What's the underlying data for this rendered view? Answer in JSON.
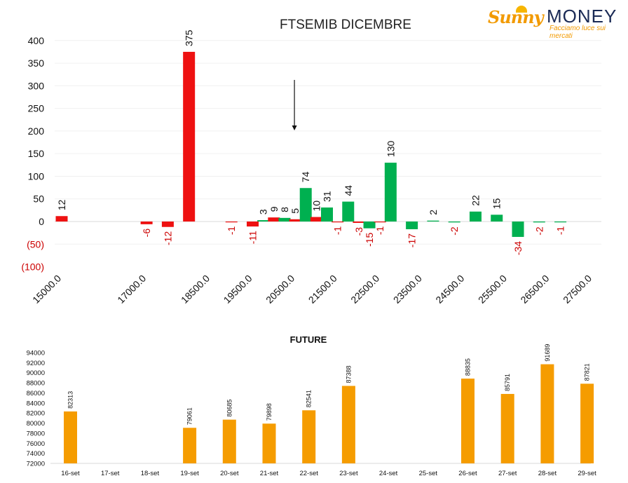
{
  "brand": {
    "name_left": "Sunny",
    "name_right": "MONEY",
    "tagline": "Facciamo luce sui mercati"
  },
  "colors": {
    "positive": "#00b050",
    "negative": "#ee1111",
    "future": "#f59c00",
    "text": "#111111",
    "negative_label": "#cc0000"
  },
  "chart_data": [
    {
      "type": "bar",
      "title": "FTSEMIB DICEMBRE",
      "xlabel": "",
      "ylabel": "",
      "ylim": [
        -100,
        400
      ],
      "yticks": [
        400,
        350,
        300,
        250,
        200,
        150,
        100,
        50,
        0,
        -50,
        -100
      ],
      "ytick_labels": [
        "400",
        "350",
        "300",
        "250",
        "200",
        "150",
        "100",
        "50",
        "0",
        "(50)",
        "(100)"
      ],
      "xlim": [
        15000,
        27500
      ],
      "xticks": [
        15000,
        17000,
        18500,
        19500,
        20500,
        21500,
        22500,
        23500,
        24500,
        25500,
        26500,
        27500
      ],
      "xtick_labels": [
        "15000.0",
        "17000.0",
        "18500.0",
        "19500.0",
        "20500.0",
        "21500.0",
        "22500.0",
        "23500.0",
        "24500.0",
        "25500.0",
        "26500.0",
        "27500.0"
      ],
      "grid": true,
      "annotations": [
        {
          "type": "arrow-down",
          "x": 20500
        }
      ],
      "bars": [
        {
          "x": 15000,
          "value": 12,
          "label": "12",
          "sign": "negative"
        },
        {
          "x": 17000,
          "value": -6,
          "label": "-6",
          "sign": "negative"
        },
        {
          "x": 17500,
          "value": -12,
          "label": "-12",
          "sign": "negative"
        },
        {
          "x": 18000,
          "value": 375,
          "label": "375",
          "sign": "negative"
        },
        {
          "x": 19000,
          "value": -1,
          "label": "-1",
          "sign": "negative"
        },
        {
          "x": 19500,
          "value": -11,
          "label": "-11",
          "sign": "negative"
        },
        {
          "x": 19750,
          "value": 3,
          "label": "3",
          "sign": "positive"
        },
        {
          "x": 20000,
          "value": 9,
          "label": "9",
          "sign": "negative"
        },
        {
          "x": 20250,
          "value": 8,
          "label": "8",
          "sign": "positive"
        },
        {
          "x": 20500,
          "value": 5,
          "label": "5",
          "sign": "negative"
        },
        {
          "x": 20750,
          "value": 74,
          "label": "74",
          "sign": "positive"
        },
        {
          "x": 21000,
          "value": 10,
          "label": "10",
          "sign": "negative"
        },
        {
          "x": 21250,
          "value": 31,
          "label": "31",
          "sign": "positive"
        },
        {
          "x": 21500,
          "value": -1,
          "label": "-1",
          "sign": "negative"
        },
        {
          "x": 21750,
          "value": 44,
          "label": "44",
          "sign": "positive"
        },
        {
          "x": 22000,
          "value": -3,
          "label": "-3",
          "sign": "negative"
        },
        {
          "x": 22250,
          "value": -15,
          "label": "-15",
          "sign": "positive"
        },
        {
          "x": 22500,
          "value": -1,
          "label": "-1",
          "sign": "negative"
        },
        {
          "x": 22750,
          "value": 130,
          "label": "130",
          "sign": "positive"
        },
        {
          "x": 23250,
          "value": -17,
          "label": "-17",
          "sign": "positive"
        },
        {
          "x": 23750,
          "value": 2,
          "label": "2",
          "sign": "positive"
        },
        {
          "x": 24250,
          "value": -2,
          "label": "-2",
          "sign": "positive"
        },
        {
          "x": 24750,
          "value": 22,
          "label": "22",
          "sign": "positive"
        },
        {
          "x": 25250,
          "value": 15,
          "label": "15",
          "sign": "positive"
        },
        {
          "x": 25750,
          "value": -34,
          "label": "-34",
          "sign": "positive"
        },
        {
          "x": 26250,
          "value": -2,
          "label": "-2",
          "sign": "positive"
        },
        {
          "x": 26750,
          "value": -1,
          "label": "-1",
          "sign": "positive"
        }
      ]
    },
    {
      "type": "bar",
      "title": "FUTURE",
      "xlabel": "",
      "ylabel": "",
      "ylim": [
        72000,
        94000
      ],
      "yticks": [
        94000,
        92000,
        90000,
        88000,
        86000,
        84000,
        82000,
        80000,
        78000,
        76000,
        74000,
        72000
      ],
      "grid": false,
      "categories": [
        "16-set",
        "17-set",
        "18-set",
        "19-set",
        "20-set",
        "21-set",
        "22-set",
        "23-set",
        "24-set",
        "25-set",
        "26-set",
        "27-set",
        "28-set",
        "29-set"
      ],
      "values": [
        82313,
        null,
        null,
        79061,
        80685,
        79898,
        82541,
        87388,
        null,
        null,
        88835,
        85791,
        91689,
        87821
      ]
    }
  ]
}
